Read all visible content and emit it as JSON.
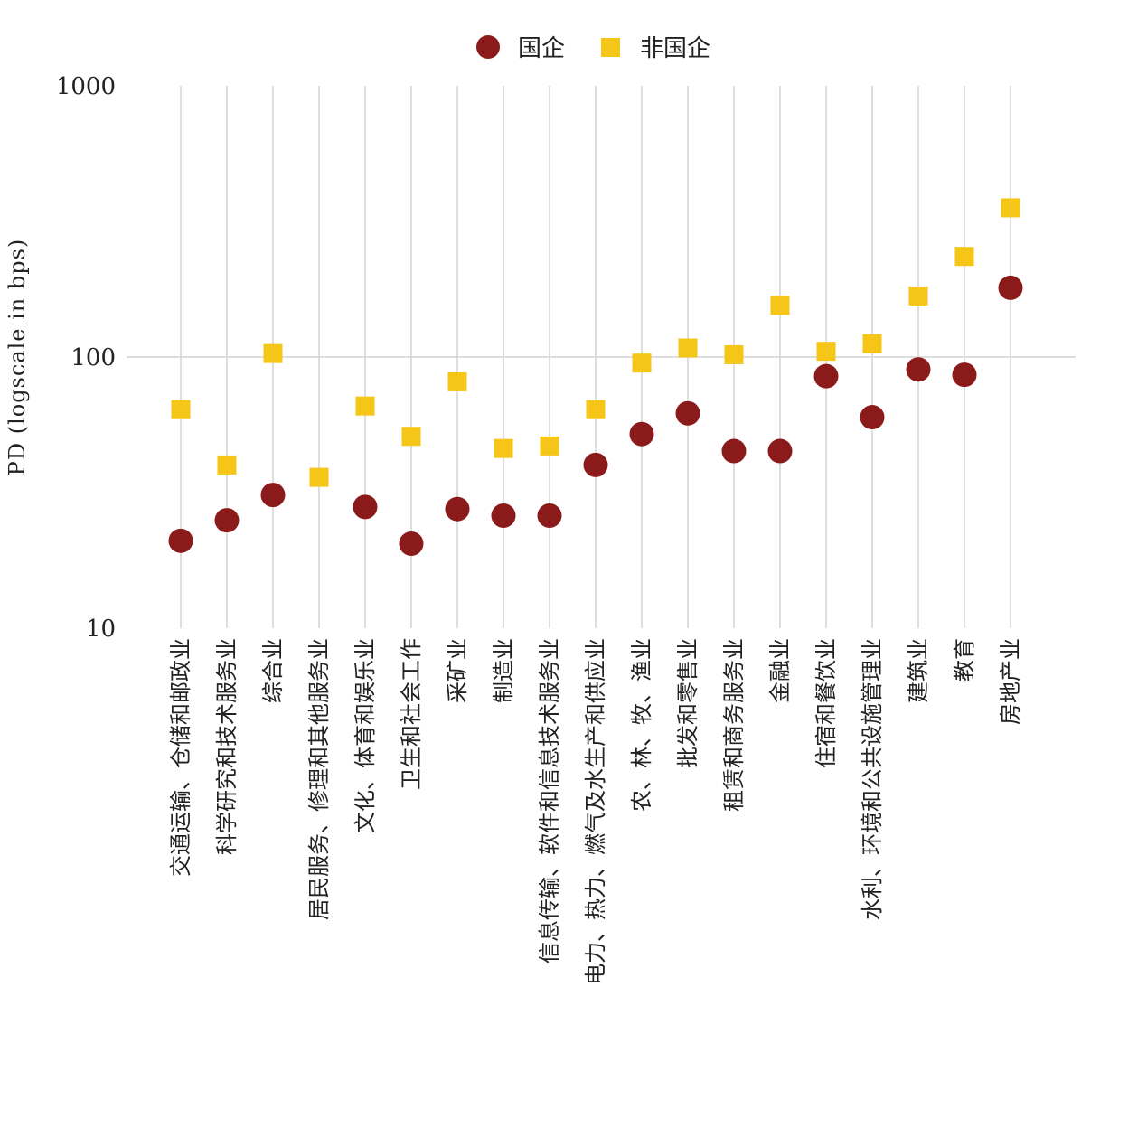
{
  "chart_data": {
    "type": "scatter",
    "ylabel": "PD (logscale in bps)",
    "yscale": "log",
    "ylim": [
      10,
      1000
    ],
    "yticks": [
      10,
      100,
      1000
    ],
    "ytick_labels": [
      "10",
      "100",
      "1000"
    ],
    "grid": "vertical per category + horizontal at 100",
    "legend_position": "top-center",
    "categories": [
      "交通运输、仓储和邮政业",
      "科学研究和技术服务业",
      "综合业",
      "居民服务、修理和其他服务业",
      "文化、体育和娱乐业",
      "卫生和社会工作",
      "采矿业",
      "制造业",
      "信息传输、软件和信息技术服务业",
      "电力、热力、燃气及水生产和供应业",
      "农、林、牧、渔业",
      "批发和零售业",
      "租赁和商务服务业",
      "金融业",
      "住宿和餐饮业",
      "水利、环境和公共设施管理业",
      "建筑业",
      "教育",
      "房地产业"
    ],
    "series": [
      {
        "name": "国企",
        "marker": "circle",
        "color": "#8b1a1a",
        "values": [
          21,
          25,
          31,
          null,
          28,
          20.5,
          27.5,
          26,
          26,
          40,
          52,
          62,
          45,
          45,
          85,
          60,
          90,
          86,
          180
        ]
      },
      {
        "name": "非国企",
        "marker": "square",
        "color": "#f5c518",
        "values": [
          64,
          40,
          103,
          36,
          66,
          51,
          81,
          46,
          47,
          64,
          95,
          108,
          102,
          155,
          105,
          112,
          168,
          235,
          355
        ]
      }
    ]
  }
}
